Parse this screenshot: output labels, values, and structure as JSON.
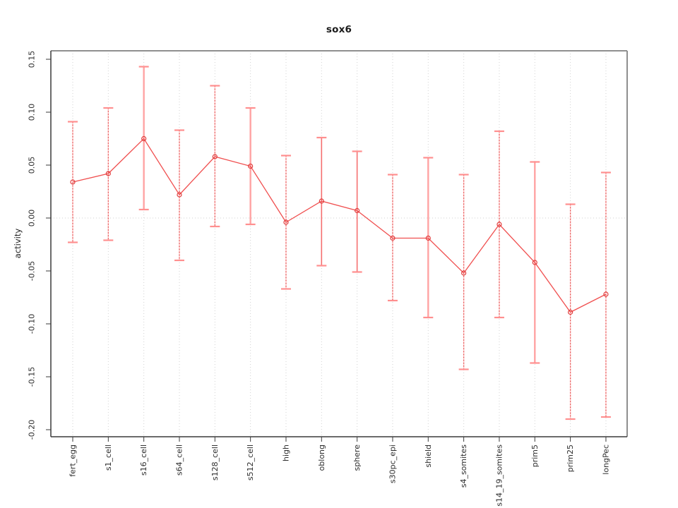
{
  "title": "sox6",
  "chart_data": {
    "type": "line",
    "subtype": "points-with-error-bars",
    "title": "sox6",
    "xlabel": "",
    "ylabel": "activity",
    "legend": "none",
    "grid": {
      "vertical": "dotted at every category",
      "horizontal": "dotted at y=0 only"
    },
    "ylim": [
      -0.207,
      0.158
    ],
    "y_tick_values": [
      0.15,
      0.1,
      0.05,
      0.0,
      -0.05,
      -0.1,
      -0.15,
      -0.2
    ],
    "y_tick_labels": [
      "0.15",
      "0.10",
      "0.05",
      "0.00",
      "-0.05",
      "-0.10",
      "-0.15",
      "-0.20"
    ],
    "tick_label_rotation_deg": 90,
    "categories": [
      "fert_egg",
      "s1_cell",
      "s16_cell",
      "s64_cell",
      "s128_cell",
      "s512_cell",
      "high",
      "oblong",
      "sphere",
      "s30pc_epi",
      "shield",
      "s4_somites",
      "s14_19_somites",
      "prim5",
      "prim25",
      "longPec"
    ],
    "series": [
      {
        "name": "activity",
        "marker": "open-circle",
        "values": [
          0.034,
          0.042,
          0.075,
          0.022,
          0.058,
          0.049,
          -0.004,
          0.016,
          0.007,
          -0.019,
          -0.019,
          -0.052,
          -0.006,
          -0.042,
          -0.089,
          -0.072
        ],
        "error_upper": [
          0.091,
          0.104,
          0.143,
          0.083,
          0.125,
          0.104,
          0.059,
          0.076,
          0.063,
          0.041,
          0.057,
          0.041,
          0.082,
          0.053,
          0.013,
          0.043
        ],
        "error_lower": [
          -0.023,
          -0.021,
          0.008,
          -0.04,
          -0.008,
          -0.006,
          -0.067,
          -0.045,
          -0.051,
          -0.078,
          -0.094,
          -0.143,
          -0.094,
          -0.137,
          -0.19,
          -0.188
        ],
        "bar_styles": [
          "dotted",
          "dotted",
          "solid-light",
          "dotted",
          "dotted",
          "solid-light",
          "dotted",
          "solid-medium",
          "solid-medium",
          "dotted",
          "solid-light",
          "dotted",
          "dotted",
          "solid-light",
          "dotted",
          "dotted"
        ]
      }
    ],
    "colors": {
      "point": "#e03c3c",
      "line": "#f04f4f",
      "bar_solid_light": "#ffa3a3",
      "bar_solid_medium": "#f57070",
      "bar_dotted": "#e04545",
      "bar_dotted_underlay": "#ffc4c4",
      "cap": "#ff8f8f",
      "grid": "#d2d2d2",
      "axis_dark": "#3a3a3a",
      "box_gray": "#8f8f8f",
      "text": "#2e2e2e"
    }
  }
}
